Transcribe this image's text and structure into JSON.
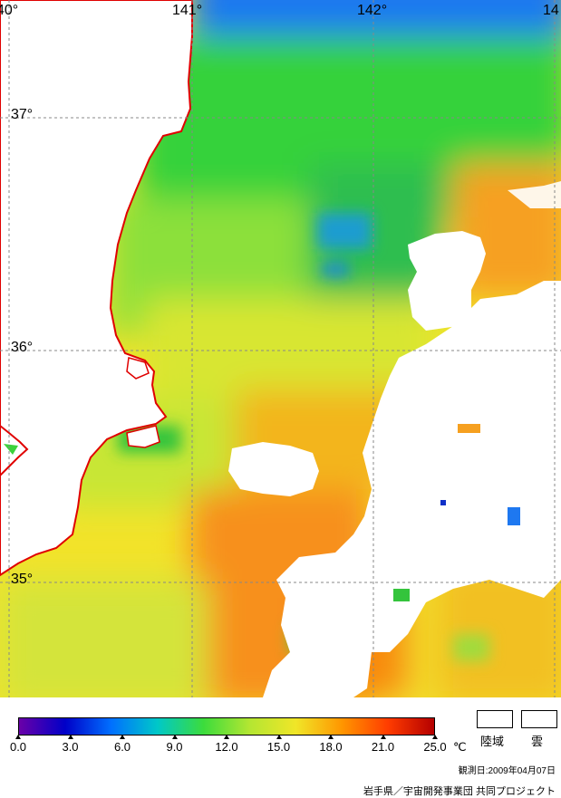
{
  "map": {
    "lon_labels": [
      "40°",
      "141°",
      "142°",
      "14"
    ],
    "lat_labels": [
      "37°",
      "36°",
      "35°"
    ]
  },
  "legend": {
    "ticks": [
      "0.0",
      "3.0",
      "6.0",
      "9.0",
      "12.0",
      "15.0",
      "18.0",
      "21.0",
      "25.0"
    ],
    "unit": "℃",
    "land_label": "陸域",
    "cloud_label": "雲"
  },
  "observation_date": "観測日:2009年04月07日",
  "credit": "岩手県／宇宙開発事業団 共同プロジェクト",
  "colors": {
    "scale": [
      "#6a00a8",
      "#0000c8",
      "#0070ff",
      "#00c8c8",
      "#3cdc3c",
      "#b4e632",
      "#f0e628",
      "#ff9600",
      "#ff3c00",
      "#b40000"
    ],
    "coastline": "#e00000"
  }
}
